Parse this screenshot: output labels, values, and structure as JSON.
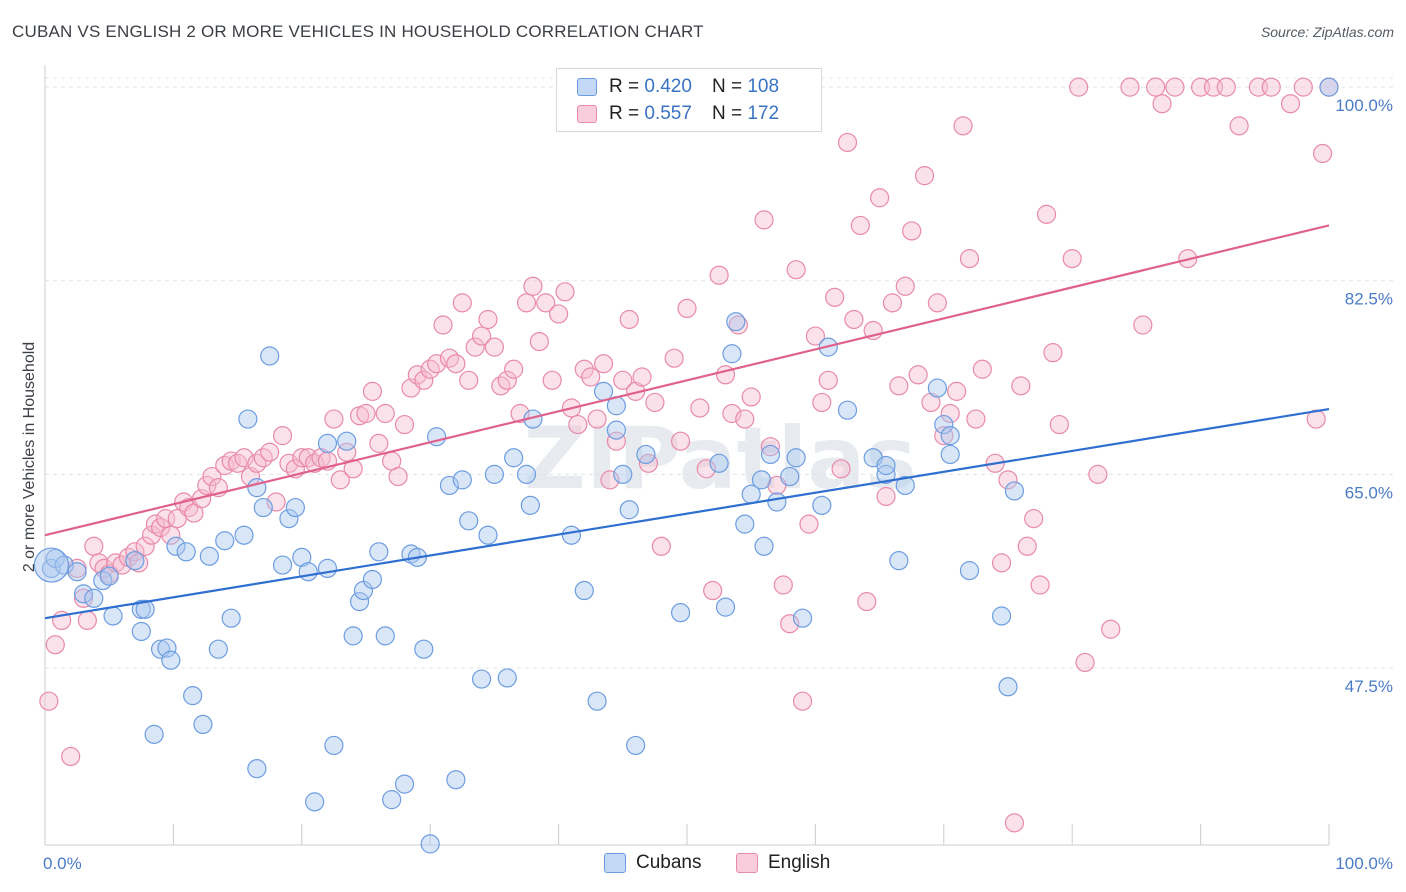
{
  "title": "CUBAN VS ENGLISH 2 OR MORE VEHICLES IN HOUSEHOLD CORRELATION CHART",
  "source": "Source: ZipAtlas.com",
  "watermark": "ZIPatlas",
  "legend": {
    "rows": [
      {
        "r_label": "R =",
        "r_value": "0.420",
        "n_label": "N =",
        "n_value": "108"
      },
      {
        "r_label": "R =",
        "r_value": "0.557",
        "n_label": "N =",
        "n_value": "172"
      }
    ]
  },
  "bottom_legend": [
    "Cubans",
    "English"
  ],
  "colors": {
    "cubans_fill": "#a9c8f0",
    "cubans_stroke": "#6d9de0",
    "cubans_line": "#2f6fd0",
    "english_fill": "#f6bccf",
    "english_stroke": "#e88aab",
    "english_line": "#e0628c",
    "tick_text": "#4a7cc6",
    "grid": "#e2e4e8"
  },
  "chart_data": {
    "type": "scatter",
    "title": "CUBAN VS ENGLISH 2 OR MORE VEHICLES IN HOUSEHOLD CORRELATION CHART",
    "xlabel": "",
    "ylabel": "2 or more Vehicles in Household",
    "xlim": [
      0,
      100
    ],
    "ylim": [
      31.5,
      102
    ],
    "x_tick_labels": [
      "0.0%",
      "100.0%"
    ],
    "y_ticks": [
      47.5,
      65.0,
      82.5,
      100.0
    ],
    "y_tick_labels": [
      "47.5%",
      "65.0%",
      "82.5%",
      "100.0%"
    ],
    "grid": true,
    "legend_position": "top-center",
    "series": [
      {
        "name": "Cubans",
        "r": 0.42,
        "n": 108,
        "trend": {
          "x": [
            0,
            100
          ],
          "y": [
            52.0,
            70.9
          ]
        },
        "points": [
          [
            0.5,
            56.5
          ],
          [
            0.8,
            57.4
          ],
          [
            1.5,
            56.8
          ],
          [
            2.5,
            56.2
          ],
          [
            3,
            54.2
          ],
          [
            3.8,
            53.8
          ],
          [
            4.5,
            55.4
          ],
          [
            5,
            55.8
          ],
          [
            5.3,
            52.2
          ],
          [
            7,
            57.2
          ],
          [
            7.5,
            52.8
          ],
          [
            7.5,
            50.8
          ],
          [
            7.8,
            52.8
          ],
          [
            8.5,
            41.5
          ],
          [
            9,
            49.2
          ],
          [
            9.5,
            49.3
          ],
          [
            9.8,
            48.2
          ],
          [
            10.2,
            58.5
          ],
          [
            11,
            58.0
          ],
          [
            11.5,
            45.0
          ],
          [
            12.3,
            42.4
          ],
          [
            12.8,
            57.6
          ],
          [
            13.5,
            49.2
          ],
          [
            14,
            59.0
          ],
          [
            14.5,
            52.0
          ],
          [
            15.5,
            59.5
          ],
          [
            15.8,
            70.0
          ],
          [
            16.5,
            63.8
          ],
          [
            16.5,
            38.4
          ],
          [
            17,
            62.0
          ],
          [
            17.5,
            75.7
          ],
          [
            18.5,
            56.8
          ],
          [
            19,
            61.0
          ],
          [
            19.5,
            62.0
          ],
          [
            20,
            57.5
          ],
          [
            20.5,
            56.2
          ],
          [
            21,
            35.4
          ],
          [
            22,
            67.8
          ],
          [
            22,
            56.5
          ],
          [
            22.5,
            40.5
          ],
          [
            23.5,
            68.0
          ],
          [
            24,
            50.4
          ],
          [
            24.5,
            53.5
          ],
          [
            24.8,
            54.5
          ],
          [
            25.5,
            55.5
          ],
          [
            26,
            58.0
          ],
          [
            26.5,
            50.4
          ],
          [
            27,
            35.6
          ],
          [
            28,
            37.0
          ],
          [
            28.5,
            57.8
          ],
          [
            29,
            57.5
          ],
          [
            29.5,
            49.2
          ],
          [
            30,
            31.6
          ],
          [
            30.5,
            68.4
          ],
          [
            31.5,
            64.0
          ],
          [
            32,
            37.4
          ],
          [
            32.5,
            64.5
          ],
          [
            33,
            60.8
          ],
          [
            34,
            46.5
          ],
          [
            34.5,
            59.5
          ],
          [
            35,
            65.0
          ],
          [
            36,
            46.6
          ],
          [
            36.5,
            66.5
          ],
          [
            37.5,
            65.0
          ],
          [
            37.8,
            62.2
          ],
          [
            38,
            70.0
          ],
          [
            41,
            59.5
          ],
          [
            42,
            54.5
          ],
          [
            43,
            44.5
          ],
          [
            43.5,
            72.5
          ],
          [
            44.5,
            71.2
          ],
          [
            44.5,
            69.0
          ],
          [
            45,
            65.0
          ],
          [
            45.5,
            61.8
          ],
          [
            46,
            40.5
          ],
          [
            46.8,
            66.8
          ],
          [
            49.5,
            52.5
          ],
          [
            52.5,
            66.0
          ],
          [
            53,
            53.0
          ],
          [
            53.5,
            75.9
          ],
          [
            53.8,
            78.8
          ],
          [
            54.5,
            60.5
          ],
          [
            55,
            63.2
          ],
          [
            55.8,
            64.5
          ],
          [
            56,
            58.5
          ],
          [
            56.5,
            66.8
          ],
          [
            57,
            62.5
          ],
          [
            58,
            64.8
          ],
          [
            58.5,
            66.5
          ],
          [
            59,
            52.0
          ],
          [
            60.5,
            62.2
          ],
          [
            61,
            76.5
          ],
          [
            62.5,
            70.8
          ],
          [
            64.5,
            66.5
          ],
          [
            65.5,
            65.0
          ],
          [
            65.5,
            65.8
          ],
          [
            66.5,
            57.2
          ],
          [
            67,
            64.0
          ],
          [
            69.5,
            72.8
          ],
          [
            70,
            69.5
          ],
          [
            70.5,
            66.8
          ],
          [
            70.5,
            68.5
          ],
          [
            72,
            56.3
          ],
          [
            74.5,
            52.2
          ],
          [
            75,
            45.8
          ],
          [
            75.5,
            63.5
          ],
          [
            100,
            100.0
          ]
        ],
        "large_point": [
          0.5,
          56.8
        ]
      },
      {
        "name": "English",
        "r": 0.557,
        "n": 172,
        "trend": {
          "x": [
            0,
            100
          ],
          "y": [
            59.5,
            87.5
          ]
        },
        "points": [
          [
            0.3,
            44.5
          ],
          [
            0.8,
            49.6
          ],
          [
            1.3,
            51.8
          ],
          [
            2,
            39.5
          ],
          [
            2.5,
            56.5
          ],
          [
            3,
            53.8
          ],
          [
            3.3,
            51.8
          ],
          [
            3.8,
            58.5
          ],
          [
            4.2,
            57.0
          ],
          [
            4.6,
            56.5
          ],
          [
            5,
            56.0
          ],
          [
            5.5,
            57.0
          ],
          [
            6,
            56.8
          ],
          [
            6.5,
            57.5
          ],
          [
            7,
            58.0
          ],
          [
            7.3,
            57.0
          ],
          [
            7.8,
            58.5
          ],
          [
            8.3,
            59.5
          ],
          [
            8.6,
            60.5
          ],
          [
            9,
            60.2
          ],
          [
            9.4,
            61.0
          ],
          [
            9.8,
            59.5
          ],
          [
            10.3,
            61.0
          ],
          [
            10.8,
            62.5
          ],
          [
            11.2,
            62.0
          ],
          [
            11.6,
            61.5
          ],
          [
            12.2,
            62.8
          ],
          [
            12.6,
            64.0
          ],
          [
            13,
            64.8
          ],
          [
            13.5,
            63.8
          ],
          [
            14,
            65.8
          ],
          [
            14.5,
            66.2
          ],
          [
            15,
            66.0
          ],
          [
            15.5,
            66.5
          ],
          [
            16,
            64.8
          ],
          [
            16.5,
            66.0
          ],
          [
            17,
            66.5
          ],
          [
            17.5,
            67.0
          ],
          [
            18,
            62.5
          ],
          [
            18.5,
            68.5
          ],
          [
            19,
            66.0
          ],
          [
            19.5,
            65.5
          ],
          [
            20,
            66.5
          ],
          [
            20.5,
            66.5
          ],
          [
            21,
            66.0
          ],
          [
            21.5,
            66.5
          ],
          [
            22,
            66.2
          ],
          [
            22.5,
            70.0
          ],
          [
            23,
            64.5
          ],
          [
            23.5,
            67.0
          ],
          [
            24,
            65.5
          ],
          [
            24.5,
            70.3
          ],
          [
            25,
            70.5
          ],
          [
            25.5,
            72.5
          ],
          [
            26,
            67.8
          ],
          [
            26.5,
            70.5
          ],
          [
            27,
            66.2
          ],
          [
            27.5,
            64.8
          ],
          [
            28,
            69.5
          ],
          [
            28.5,
            72.8
          ],
          [
            29,
            74.0
          ],
          [
            29.5,
            73.5
          ],
          [
            30,
            74.5
          ],
          [
            30.5,
            75.0
          ],
          [
            31,
            78.5
          ],
          [
            31.5,
            75.5
          ],
          [
            32,
            75.0
          ],
          [
            32.5,
            80.5
          ],
          [
            33,
            73.5
          ],
          [
            33.5,
            76.5
          ],
          [
            34,
            77.5
          ],
          [
            34.5,
            79.0
          ],
          [
            35,
            76.5
          ],
          [
            35.5,
            73.0
          ],
          [
            36,
            73.5
          ],
          [
            36.5,
            74.5
          ],
          [
            37,
            70.5
          ],
          [
            37.5,
            80.5
          ],
          [
            38,
            82.0
          ],
          [
            38.5,
            77.0
          ],
          [
            39,
            80.5
          ],
          [
            39.5,
            73.5
          ],
          [
            40,
            79.5
          ],
          [
            40.5,
            81.5
          ],
          [
            41,
            71.0
          ],
          [
            41.5,
            69.5
          ],
          [
            42,
            74.5
          ],
          [
            42.5,
            73.8
          ],
          [
            43,
            70.0
          ],
          [
            43.5,
            75.0
          ],
          [
            44,
            64.5
          ],
          [
            44.5,
            68.0
          ],
          [
            45,
            73.5
          ],
          [
            45.5,
            79.0
          ],
          [
            46,
            72.5
          ],
          [
            46.5,
            73.8
          ],
          [
            47,
            66.0
          ],
          [
            47.5,
            71.5
          ],
          [
            48,
            58.5
          ],
          [
            49,
            75.5
          ],
          [
            49.5,
            68.0
          ],
          [
            50,
            80.0
          ],
          [
            51,
            71.0
          ],
          [
            51.5,
            65.5
          ],
          [
            52,
            54.5
          ],
          [
            52.5,
            83.0
          ],
          [
            53,
            74.0
          ],
          [
            53.5,
            70.5
          ],
          [
            54,
            78.5
          ],
          [
            54.5,
            70.0
          ],
          [
            55,
            72.0
          ],
          [
            56,
            88.0
          ],
          [
            56.5,
            67.5
          ],
          [
            57,
            64.0
          ],
          [
            57.5,
            55.0
          ],
          [
            58,
            51.5
          ],
          [
            58.5,
            83.5
          ],
          [
            59,
            44.5
          ],
          [
            59.5,
            60.5
          ],
          [
            60,
            77.5
          ],
          [
            60.5,
            71.5
          ],
          [
            61,
            73.5
          ],
          [
            61.5,
            81.0
          ],
          [
            62,
            65.5
          ],
          [
            62.5,
            95.0
          ],
          [
            63,
            79.0
          ],
          [
            63.5,
            87.5
          ],
          [
            64,
            53.5
          ],
          [
            64.5,
            78.0
          ],
          [
            65,
            90.0
          ],
          [
            65.5,
            63.0
          ],
          [
            66,
            80.5
          ],
          [
            66.5,
            73.0
          ],
          [
            67,
            82.0
          ],
          [
            67.5,
            87.0
          ],
          [
            68,
            74.0
          ],
          [
            68.5,
            92.0
          ],
          [
            69,
            71.5
          ],
          [
            69.5,
            80.5
          ],
          [
            70,
            68.5
          ],
          [
            70.5,
            70.5
          ],
          [
            71,
            72.5
          ],
          [
            71.5,
            96.5
          ],
          [
            72,
            84.5
          ],
          [
            72.5,
            70.0
          ],
          [
            73,
            74.5
          ],
          [
            74,
            66.0
          ],
          [
            74.5,
            57.0
          ],
          [
            75,
            64.5
          ],
          [
            75.5,
            33.5
          ],
          [
            76,
            73.0
          ],
          [
            76.5,
            58.5
          ],
          [
            77,
            61.0
          ],
          [
            77.5,
            55.0
          ],
          [
            78,
            88.5
          ],
          [
            78.5,
            76.0
          ],
          [
            79,
            69.5
          ],
          [
            80,
            84.5
          ],
          [
            80.5,
            100
          ],
          [
            81,
            48.0
          ],
          [
            82,
            65.0
          ],
          [
            83,
            51.0
          ],
          [
            84.5,
            100
          ],
          [
            85.5,
            78.5
          ],
          [
            86.5,
            100
          ],
          [
            87,
            98.5
          ],
          [
            88,
            100
          ],
          [
            89,
            84.5
          ],
          [
            90,
            100
          ],
          [
            91,
            100
          ],
          [
            92,
            100
          ],
          [
            93,
            96.5
          ],
          [
            94.5,
            100
          ],
          [
            95.5,
            100
          ],
          [
            97,
            98.5
          ],
          [
            98,
            100
          ],
          [
            99,
            70.0
          ],
          [
            99.5,
            94.0
          ],
          [
            100,
            100
          ]
        ]
      }
    ]
  }
}
